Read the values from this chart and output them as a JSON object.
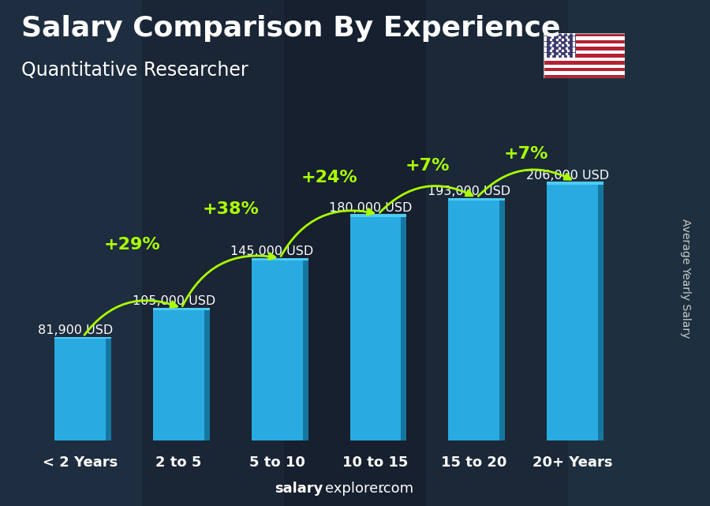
{
  "title": "Salary Comparison By Experience",
  "subtitle": "Quantitative Researcher",
  "ylabel": "Average Yearly Salary",
  "categories": [
    "< 2 Years",
    "2 to 5",
    "5 to 10",
    "10 to 15",
    "15 to 20",
    "20+ Years"
  ],
  "values": [
    81900,
    105000,
    145000,
    180000,
    193000,
    206000
  ],
  "value_labels": [
    "81,900 USD",
    "105,000 USD",
    "145,000 USD",
    "180,000 USD",
    "193,000 USD",
    "206,000 USD"
  ],
  "pct_changes": [
    "+29%",
    "+38%",
    "+24%",
    "+7%",
    "+7%"
  ],
  "bar_color_face": "#29ABE2",
  "bar_color_right": "#1577a0",
  "bar_color_top": "#4ecbf5",
  "background_color": "#1a2535",
  "pct_color": "#aaff00",
  "title_fontsize": 26,
  "subtitle_fontsize": 17,
  "value_fontsize": 11.5,
  "pct_fontsize": 16,
  "tick_fontsize": 13,
  "ylabel_fontsize": 10,
  "footer_salary_fontsize": 13,
  "footer_explorer_fontsize": 13
}
